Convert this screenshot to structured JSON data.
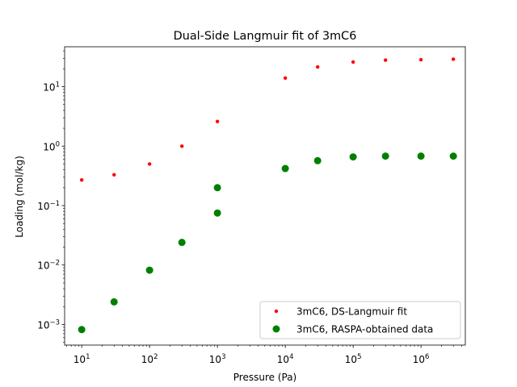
{
  "chart_data": {
    "type": "scatter",
    "title": "Dual-Side Langmuir fit of 3mC6",
    "xlabel": "Pressure (Pa)",
    "ylabel": "Loading (mol/kg)",
    "xscale": "log",
    "yscale": "log",
    "xlim": [
      5.6,
      4500000
    ],
    "ylim": [
      0.00045,
      47
    ],
    "grid": false,
    "legend_position": "lower right",
    "x_ticks": [
      {
        "base": "10",
        "exp": "1",
        "value": 10
      },
      {
        "base": "10",
        "exp": "2",
        "value": 100
      },
      {
        "base": "10",
        "exp": "3",
        "value": 1000
      },
      {
        "base": "10",
        "exp": "4",
        "value": 10000
      },
      {
        "base": "10",
        "exp": "5",
        "value": 100000
      },
      {
        "base": "10",
        "exp": "6",
        "value": 1000000
      }
    ],
    "y_ticks": [
      {
        "base": "10",
        "exp": "−3",
        "value": 0.001
      },
      {
        "base": "10",
        "exp": "−2",
        "value": 0.01
      },
      {
        "base": "10",
        "exp": "−1",
        "value": 0.1
      },
      {
        "base": "10",
        "exp": "0",
        "value": 1
      },
      {
        "base": "10",
        "exp": "1",
        "value": 10
      }
    ],
    "series": [
      {
        "name": "3mC6, DS-Langmuir fit",
        "color": "#ff0000",
        "marker": "small-dot",
        "points": [
          {
            "x": 10,
            "y": 0.27
          },
          {
            "x": 30,
            "y": 0.33
          },
          {
            "x": 100,
            "y": 0.5
          },
          {
            "x": 300,
            "y": 1.0
          },
          {
            "x": 1000,
            "y": 2.6
          },
          {
            "x": 10000,
            "y": 14
          },
          {
            "x": 30000,
            "y": 21.5
          },
          {
            "x": 100000,
            "y": 26
          },
          {
            "x": 300000,
            "y": 28
          },
          {
            "x": 1000000,
            "y": 28.5
          },
          {
            "x": 3000000,
            "y": 29
          }
        ]
      },
      {
        "name": "3mC6, RASPA-obtained data",
        "color": "#008000",
        "marker": "large-dot",
        "points": [
          {
            "x": 10,
            "y": 0.00082
          },
          {
            "x": 30,
            "y": 0.0024
          },
          {
            "x": 100,
            "y": 0.0082
          },
          {
            "x": 300,
            "y": 0.024
          },
          {
            "x": 1000,
            "y": 0.2
          },
          {
            "x": 1000,
            "y": 0.075
          },
          {
            "x": 10000,
            "y": 0.42
          },
          {
            "x": 30000,
            "y": 0.57
          },
          {
            "x": 100000,
            "y": 0.66
          },
          {
            "x": 300000,
            "y": 0.68
          },
          {
            "x": 1000000,
            "y": 0.68
          },
          {
            "x": 3000000,
            "y": 0.68
          }
        ]
      }
    ]
  }
}
